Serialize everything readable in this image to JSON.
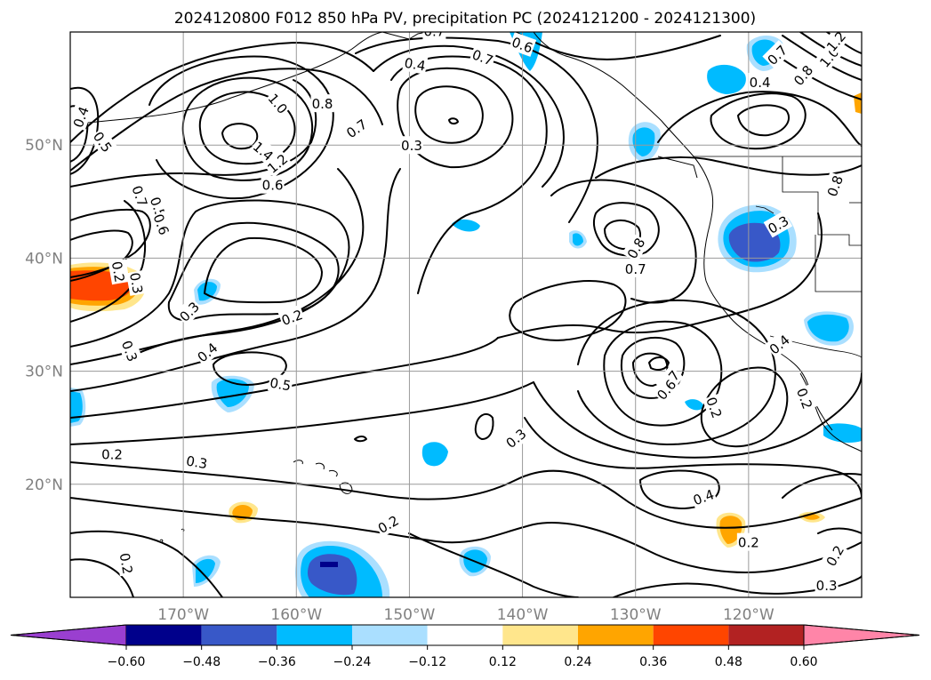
{
  "title": "2024120800 F012 850 hPa PV, precipitation PC (2024121200 - 2024121300)",
  "colors": {
    "ticklabel": "#808080",
    "grid": "#9a9a9a",
    "contour": "#000000"
  },
  "chart_data": {
    "type": "contour-map",
    "projection": "lat-lon",
    "extent": {
      "lon": [
        -180,
        -110
      ],
      "lat": [
        10,
        60
      ]
    },
    "grid": true,
    "xticks": [
      "170°W",
      "160°W",
      "150°W",
      "140°W",
      "130°W",
      "120°W"
    ],
    "yticks": [
      "50°N",
      "40°N",
      "30°N",
      "20°N"
    ],
    "contour_field": "850 hPa PV",
    "contour_labels": [
      {
        "text": "0.4",
        "lon": -179.1,
        "lat": 52.5,
        "rot": -70
      },
      {
        "text": "0.5",
        "lon": -177.1,
        "lat": 50.3,
        "rot": 55
      },
      {
        "text": "0.7",
        "lon": -173.8,
        "lat": 45.5,
        "rot": 70
      },
      {
        "text": "0.5",
        "lon": -172.2,
        "lat": 44.5,
        "rot": 70
      },
      {
        "text": "0.6",
        "lon": -171.9,
        "lat": 43.0,
        "rot": 70
      },
      {
        "text": "0.2",
        "lon": -175.7,
        "lat": 38.8,
        "rot": 80
      },
      {
        "text": "0.3",
        "lon": -174.1,
        "lat": 37.8,
        "rot": 80
      },
      {
        "text": "0.3",
        "lon": -174.7,
        "lat": 31.8,
        "rot": 70
      },
      {
        "text": "1.0",
        "lon": -161.6,
        "lat": 53.7,
        "rot": 50
      },
      {
        "text": "1.4",
        "lon": -162.9,
        "lat": 49.5,
        "rot": 40
      },
      {
        "text": "1.2",
        "lon": -161.7,
        "lat": 48.4,
        "rot": -40
      },
      {
        "text": "0.6",
        "lon": -162.1,
        "lat": 46.5,
        "rot": 0
      },
      {
        "text": "0.8",
        "lon": -157.7,
        "lat": 53.7,
        "rot": 0
      },
      {
        "text": "0.7",
        "lon": -154.7,
        "lat": 51.5,
        "rot": -35
      },
      {
        "text": "0.3",
        "lon": -169.5,
        "lat": 35.3,
        "rot": -45
      },
      {
        "text": "0.2",
        "lon": -160.4,
        "lat": 34.8,
        "rot": -20
      },
      {
        "text": "0.4",
        "lon": -167.9,
        "lat": 31.7,
        "rot": -40
      },
      {
        "text": "0.5",
        "lon": -161.4,
        "lat": 28.9,
        "rot": 10
      },
      {
        "text": "0.4",
        "lon": -149.5,
        "lat": 57.2,
        "rot": 10
      },
      {
        "text": "0.3",
        "lon": -149.8,
        "lat": 50.0,
        "rot": 0
      },
      {
        "text": "0.7",
        "lon": -147.8,
        "lat": 60.1,
        "rot": 0
      },
      {
        "text": "0.7",
        "lon": -143.5,
        "lat": 57.8,
        "rot": 20
      },
      {
        "text": "0.6",
        "lon": -140.0,
        "lat": 58.9,
        "rot": 20
      },
      {
        "text": "0.2",
        "lon": -176.3,
        "lat": 22.7,
        "rot": 0
      },
      {
        "text": "0.3",
        "lon": -168.8,
        "lat": 22.0,
        "rot": 10
      },
      {
        "text": "0.2",
        "lon": -151.9,
        "lat": 16.5,
        "rot": -30
      },
      {
        "text": "0.2",
        "lon": -175.0,
        "lat": 13.0,
        "rot": 80
      },
      {
        "text": "0.3",
        "lon": -140.6,
        "lat": 24.1,
        "rot": -40
      },
      {
        "text": "0.8",
        "lon": -130.0,
        "lat": 40.9,
        "rot": -60
      },
      {
        "text": "0.7",
        "lon": -130.0,
        "lat": 39.1,
        "rot": 0
      },
      {
        "text": "0.7",
        "lon": -127.0,
        "lat": 29.2,
        "rot": -50
      },
      {
        "text": "0.6",
        "lon": -127.3,
        "lat": 28.4,
        "rot": -50
      },
      {
        "text": "0.2",
        "lon": -123.0,
        "lat": 26.8,
        "rot": 70
      },
      {
        "text": "0.4",
        "lon": -124.0,
        "lat": 18.9,
        "rot": -20
      },
      {
        "text": "0.2",
        "lon": -120.0,
        "lat": 14.9,
        "rot": 0
      },
      {
        "text": "0.4",
        "lon": -117.3,
        "lat": 32.4,
        "rot": -40
      },
      {
        "text": "0.3",
        "lon": -117.4,
        "lat": 43.0,
        "rot": -30
      },
      {
        "text": "0.4",
        "lon": -119.0,
        "lat": 55.6,
        "rot": 0
      },
      {
        "text": "0.7",
        "lon": -117.5,
        "lat": 58.0,
        "rot": -45
      },
      {
        "text": "0.8",
        "lon": -115.2,
        "lat": 56.2,
        "rot": -50
      },
      {
        "text": "1.0",
        "lon": -112.9,
        "lat": 57.8,
        "rot": -50
      },
      {
        "text": "1.2",
        "lon": -112.3,
        "lat": 59.2,
        "rot": -50
      },
      {
        "text": "0.8",
        "lon": -112.4,
        "lat": 46.4,
        "rot": -70
      },
      {
        "text": "0.2",
        "lon": -115.0,
        "lat": 27.6,
        "rot": 70
      },
      {
        "text": "0.2",
        "lon": -112.4,
        "lat": 13.7,
        "rot": -60
      },
      {
        "text": "0.3",
        "lon": -113.1,
        "lat": 11.1,
        "rot": 0
      }
    ],
    "shaded_field": "precipitation PC",
    "colorbar": {
      "orientation": "horizontal",
      "extend": "both",
      "levels": [
        -0.6,
        -0.48,
        -0.36,
        -0.24,
        -0.12,
        0.12,
        0.24,
        0.36,
        0.48,
        0.6
      ],
      "tick_labels": [
        "−0.60",
        "−0.48",
        "−0.36",
        "−0.24",
        "−0.12",
        "0.12",
        "0.24",
        "0.36",
        "0.48",
        "0.60"
      ],
      "colors": [
        "#9a3fd0",
        "#00008b",
        "#3858c8",
        "#00bbff",
        "#aadfff",
        "#ffffff",
        "#ffe68c",
        "#ffa500",
        "#ff4500",
        "#b22222",
        "#ff85a8"
      ]
    }
  }
}
